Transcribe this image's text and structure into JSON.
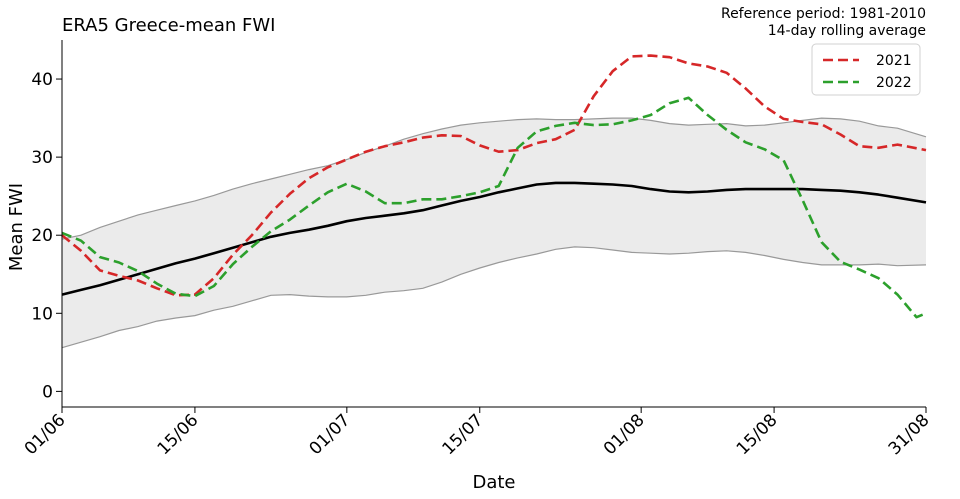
{
  "chart_data": {
    "type": "line",
    "title": "ERA5 Greece-mean FWI",
    "annotation_lines": [
      "Reference period: 1981-2010",
      "14-day rolling average"
    ],
    "xlabel": "Date",
    "ylabel": "Mean FWI",
    "ylim": [
      -2,
      45
    ],
    "yticks": [
      0,
      10,
      20,
      30,
      40
    ],
    "xrange_days": [
      0,
      91
    ],
    "xticks": [
      {
        "day": 0,
        "label": "01/06"
      },
      {
        "day": 14,
        "label": "15/06"
      },
      {
        "day": 30,
        "label": "01/07"
      },
      {
        "day": 44,
        "label": "15/07"
      },
      {
        "day": 61,
        "label": "01/08"
      },
      {
        "day": 75,
        "label": "15/08"
      },
      {
        "day": 91,
        "label": "31/08"
      }
    ],
    "legend_position": "top-right",
    "band": {
      "color": "#ebebeb",
      "edge_color": "#999999",
      "x": [
        0,
        2,
        4,
        6,
        8,
        10,
        12,
        14,
        16,
        18,
        20,
        22,
        24,
        26,
        28,
        30,
        32,
        34,
        36,
        38,
        40,
        42,
        44,
        46,
        48,
        50,
        52,
        54,
        56,
        58,
        60,
        62,
        64,
        66,
        68,
        70,
        72,
        74,
        76,
        78,
        80,
        82,
        84,
        86,
        88,
        91
      ],
      "upper": [
        19.5,
        20,
        21,
        21.8,
        22.6,
        23.2,
        23.8,
        24.4,
        25.1,
        25.9,
        26.6,
        27.2,
        27.8,
        28.4,
        28.9,
        29.7,
        30.6,
        31.4,
        32.3,
        33,
        33.6,
        34.1,
        34.4,
        34.6,
        34.8,
        34.9,
        34.8,
        34.8,
        34.9,
        35,
        35,
        34.7,
        34.3,
        34.1,
        34.2,
        34.3,
        34,
        34.1,
        34.4,
        34.7,
        35,
        34.9,
        34.6,
        34,
        33.7,
        32.6
      ],
      "lower": [
        5.6,
        6.3,
        7,
        7.8,
        8.3,
        9,
        9.4,
        9.7,
        10.4,
        10.9,
        11.6,
        12.3,
        12.4,
        12.2,
        12.1,
        12.1,
        12.3,
        12.7,
        12.9,
        13.2,
        14,
        15,
        15.8,
        16.5,
        17.1,
        17.6,
        18.2,
        18.5,
        18.4,
        18.1,
        17.8,
        17.7,
        17.6,
        17.7,
        17.9,
        18,
        17.8,
        17.4,
        16.9,
        16.5,
        16.2,
        16.2,
        16.2,
        16.3,
        16.1,
        16.2
      ]
    },
    "series": [
      {
        "name": "",
        "color": "#000000",
        "dashed": false,
        "x": [
          0,
          2,
          4,
          6,
          8,
          10,
          12,
          14,
          16,
          18,
          20,
          22,
          24,
          26,
          28,
          30,
          32,
          34,
          36,
          38,
          40,
          42,
          44,
          46,
          48,
          50,
          52,
          54,
          56,
          58,
          60,
          62,
          64,
          66,
          68,
          70,
          72,
          74,
          76,
          78,
          80,
          82,
          84,
          86,
          88,
          91
        ],
        "values": [
          12.4,
          13,
          13.6,
          14.3,
          15,
          15.7,
          16.4,
          17,
          17.7,
          18.4,
          19.1,
          19.8,
          20.3,
          20.7,
          21.2,
          21.8,
          22.2,
          22.5,
          22.8,
          23.2,
          23.8,
          24.4,
          24.9,
          25.5,
          26,
          26.5,
          26.7,
          26.7,
          26.6,
          26.5,
          26.3,
          25.9,
          25.6,
          25.5,
          25.6,
          25.8,
          25.9,
          25.9,
          25.9,
          25.9,
          25.8,
          25.7,
          25.5,
          25.2,
          24.8,
          24.2
        ]
      },
      {
        "name": "2021",
        "color": "#d62728",
        "dashed": true,
        "x": [
          0,
          2,
          4,
          6,
          8,
          10,
          12,
          14,
          16,
          18,
          20,
          22,
          24,
          26,
          28,
          30,
          32,
          34,
          36,
          38,
          40,
          42,
          44,
          46,
          48,
          50,
          52,
          54,
          56,
          58,
          60,
          62,
          64,
          66,
          68,
          70,
          72,
          74,
          76,
          78,
          80,
          82,
          84,
          86,
          88,
          91
        ],
        "values": [
          20,
          18,
          15.5,
          14.8,
          14.2,
          13.2,
          12.3,
          12.4,
          14.5,
          17.5,
          20,
          22.9,
          25.3,
          27.3,
          28.7,
          29.7,
          30.7,
          31.4,
          31.9,
          32.5,
          32.8,
          32.7,
          31.5,
          30.7,
          30.9,
          31.8,
          32.3,
          33.5,
          37.8,
          41,
          42.9,
          43,
          42.8,
          42,
          41.6,
          40.8,
          38.8,
          36.5,
          34.9,
          34.5,
          34.2,
          32.9,
          31.4,
          31.2,
          31.6,
          30.9
        ]
      },
      {
        "name": "2022",
        "color": "#2ca02c",
        "dashed": true,
        "x": [
          0,
          2,
          4,
          6,
          8,
          10,
          12,
          14,
          16,
          18,
          20,
          22,
          24,
          26,
          28,
          30,
          32,
          34,
          36,
          38,
          40,
          42,
          44,
          46,
          48,
          50,
          52,
          54,
          56,
          58,
          60,
          62,
          64,
          66,
          68,
          70,
          72,
          74,
          76,
          78,
          80,
          82,
          84,
          86,
          88,
          90,
          91
        ],
        "values": [
          20.3,
          19.3,
          17.2,
          16.5,
          15.4,
          13.8,
          12.5,
          12.2,
          13.5,
          16.3,
          18.5,
          20.5,
          22,
          23.8,
          25.5,
          26.6,
          25.6,
          24.1,
          24.1,
          24.6,
          24.6,
          25,
          25.5,
          26.3,
          31.2,
          33.3,
          34,
          34.4,
          34.1,
          34.2,
          34.7,
          35.4,
          36.9,
          37.6,
          35.4,
          33.5,
          31.9,
          31,
          29.6,
          24.5,
          19.1,
          16.6,
          15.6,
          14.5,
          12.4,
          9.5,
          10
        ]
      }
    ]
  }
}
